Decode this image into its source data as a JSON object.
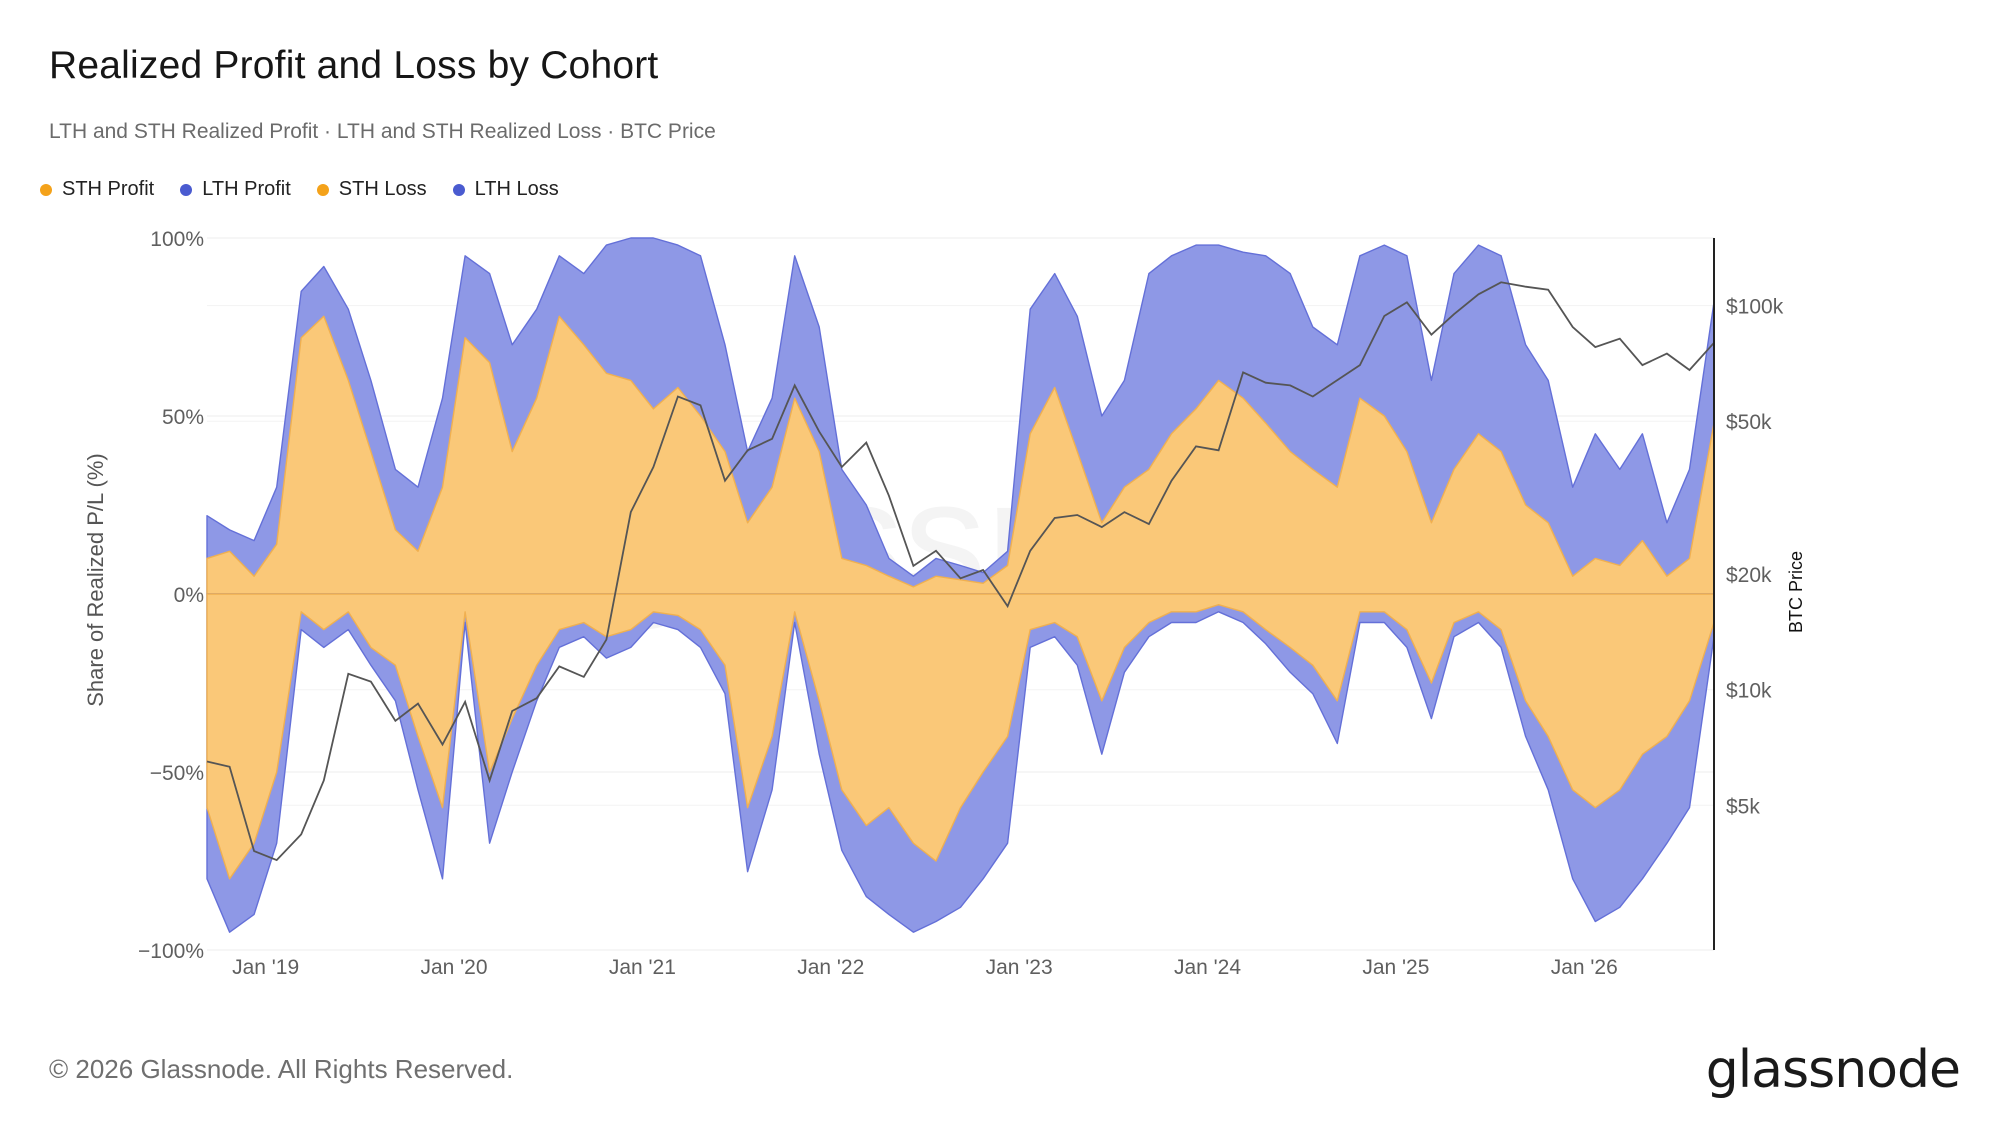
{
  "title": "Realized Profit and Loss by Cohort",
  "subtitle": "LTH and STH Realized Profit · LTH and STH Realized Loss · BTC Price",
  "legend": [
    {
      "label": "STH Profit",
      "color": "#f4a21a"
    },
    {
      "label": "LTH Profit",
      "color": "#4a5bd0"
    },
    {
      "label": "STH Loss",
      "color": "#f4a21a"
    },
    {
      "label": "LTH Loss",
      "color": "#4a5bd0"
    }
  ],
  "watermark": "glassnode",
  "footer": "© 2026 Glassnode. All Rights Reserved.",
  "brand": "glassnode",
  "colors": {
    "sth_fill": "#fac878",
    "lth_fill": "#8e98e6",
    "lth_edge": "#6470d8",
    "price_line": "#555555",
    "grid": "#ececec"
  },
  "chart_data": {
    "type": "area",
    "title": "Realized Profit and Loss by Cohort",
    "ylabel": "Share of Realized P/L (%)",
    "y2label": "BTC Price",
    "y2_scale": "log",
    "grid": true,
    "legend_position": "top-left",
    "ylim": [
      -100,
      100
    ],
    "y2lim": [
      2100,
      150000
    ],
    "yticks": [
      {
        "value": 100,
        "label": "100%"
      },
      {
        "value": 50,
        "label": "50%"
      },
      {
        "value": 0,
        "label": "0%"
      },
      {
        "value": -50,
        "label": "−50%"
      },
      {
        "value": -100,
        "label": "−100%"
      }
    ],
    "y2ticks": [
      {
        "value": 100000,
        "label": "$100k"
      },
      {
        "value": 50000,
        "label": "$50k"
      },
      {
        "value": 20000,
        "label": "$20k"
      },
      {
        "value": 10000,
        "label": "$10k"
      },
      {
        "value": 5000,
        "label": "$5k"
      }
    ],
    "xticks": [
      {
        "value": 2019.0,
        "label": "Jan '19"
      },
      {
        "value": 2020.0,
        "label": "Jan '20"
      },
      {
        "value": 2021.0,
        "label": "Jan '21"
      },
      {
        "value": 2022.0,
        "label": "Jan '22"
      },
      {
        "value": 2023.0,
        "label": "Jan '23"
      },
      {
        "value": 2024.0,
        "label": "Jan '24"
      },
      {
        "value": 2025.0,
        "label": "Jan '25"
      },
      {
        "value": 2026.0,
        "label": "Jan '26"
      }
    ],
    "xlim": [
      2018.71,
      2026.71
    ],
    "x": [
      2018.71,
      2018.83,
      2018.96,
      2019.08,
      2019.21,
      2019.33,
      2019.46,
      2019.58,
      2019.71,
      2019.83,
      2019.96,
      2020.08,
      2020.21,
      2020.33,
      2020.46,
      2020.58,
      2020.71,
      2020.83,
      2020.96,
      2021.08,
      2021.21,
      2021.33,
      2021.46,
      2021.58,
      2021.71,
      2021.83,
      2021.96,
      2022.08,
      2022.21,
      2022.33,
      2022.46,
      2022.58,
      2022.71,
      2022.83,
      2022.96,
      2023.08,
      2023.21,
      2023.33,
      2023.46,
      2023.58,
      2023.71,
      2023.83,
      2023.96,
      2024.08,
      2024.21,
      2024.33,
      2024.46,
      2024.58,
      2024.71,
      2024.83,
      2024.96,
      2025.08,
      2025.21,
      2025.33,
      2025.46,
      2025.58,
      2025.71,
      2025.83,
      2025.96,
      2026.08,
      2026.21,
      2026.33,
      2026.46,
      2026.58,
      2026.71
    ],
    "series": [
      {
        "name": "STH Profit",
        "kind": "profit",
        "values": [
          10,
          12,
          5,
          14,
          72,
          78,
          60,
          40,
          18,
          12,
          30,
          72,
          65,
          40,
          55,
          78,
          70,
          62,
          60,
          52,
          58,
          50,
          40,
          20,
          30,
          55,
          40,
          10,
          8,
          5,
          2,
          5,
          4,
          3,
          8,
          45,
          58,
          40,
          20,
          30,
          35,
          45,
          52,
          60,
          55,
          48,
          40,
          35,
          30,
          55,
          50,
          40,
          20,
          35,
          45,
          40,
          25,
          20,
          5,
          10,
          8,
          15,
          5,
          10,
          48
        ]
      },
      {
        "name": "LTH Profit",
        "kind": "profit",
        "values": [
          22,
          18,
          15,
          30,
          85,
          92,
          80,
          60,
          35,
          30,
          55,
          95,
          90,
          70,
          80,
          95,
          90,
          98,
          100,
          100,
          98,
          95,
          70,
          40,
          55,
          95,
          75,
          35,
          25,
          10,
          5,
          10,
          8,
          6,
          12,
          80,
          90,
          78,
          50,
          60,
          90,
          95,
          98,
          98,
          96,
          95,
          90,
          75,
          70,
          95,
          98,
          95,
          60,
          90,
          98,
          95,
          70,
          60,
          30,
          45,
          35,
          45,
          20,
          35,
          82
        ]
      },
      {
        "name": "STH Loss",
        "kind": "loss",
        "values": [
          -60,
          -80,
          -70,
          -50,
          -5,
          -10,
          -5,
          -15,
          -20,
          -40,
          -60,
          -5,
          -50,
          -35,
          -20,
          -10,
          -8,
          -12,
          -10,
          -5,
          -6,
          -10,
          -20,
          -60,
          -40,
          -5,
          -30,
          -55,
          -65,
          -60,
          -70,
          -75,
          -60,
          -50,
          -40,
          -10,
          -8,
          -12,
          -30,
          -15,
          -8,
          -5,
          -5,
          -3,
          -5,
          -10,
          -15,
          -20,
          -30,
          -5,
          -5,
          -10,
          -25,
          -8,
          -5,
          -10,
          -30,
          -40,
          -55,
          -60,
          -55,
          -45,
          -40,
          -30,
          -8
        ]
      },
      {
        "name": "LTH Loss",
        "kind": "loss",
        "values": [
          -80,
          -95,
          -90,
          -70,
          -10,
          -15,
          -10,
          -20,
          -30,
          -55,
          -80,
          -8,
          -70,
          -50,
          -30,
          -15,
          -12,
          -18,
          -15,
          -8,
          -10,
          -15,
          -28,
          -78,
          -55,
          -8,
          -45,
          -72,
          -85,
          -90,
          -95,
          -92,
          -88,
          -80,
          -70,
          -15,
          -12,
          -20,
          -45,
          -22,
          -12,
          -8,
          -8,
          -5,
          -8,
          -14,
          -22,
          -28,
          -42,
          -8,
          -8,
          -15,
          -35,
          -12,
          -8,
          -15,
          -40,
          -55,
          -80,
          -92,
          -88,
          -80,
          -70,
          -60,
          -12
        ]
      },
      {
        "name": "BTC Price",
        "kind": "price",
        "values": [
          6500,
          6300,
          3800,
          3600,
          4200,
          5800,
          11000,
          10500,
          8300,
          9200,
          7200,
          9300,
          5800,
          8800,
          9500,
          11500,
          10800,
          13500,
          29000,
          38000,
          58000,
          55000,
          35000,
          42000,
          45000,
          62000,
          47000,
          38000,
          44000,
          32000,
          21000,
          23000,
          19500,
          20500,
          16500,
          23000,
          28000,
          28500,
          26500,
          29000,
          27000,
          35000,
          43000,
          42000,
          67000,
          63000,
          62000,
          58000,
          64000,
          70000,
          94000,
          102000,
          84000,
          95000,
          107000,
          115000,
          112000,
          110000,
          88000,
          78000,
          82000,
          70000,
          75000,
          68000,
          80000
        ]
      }
    ]
  }
}
